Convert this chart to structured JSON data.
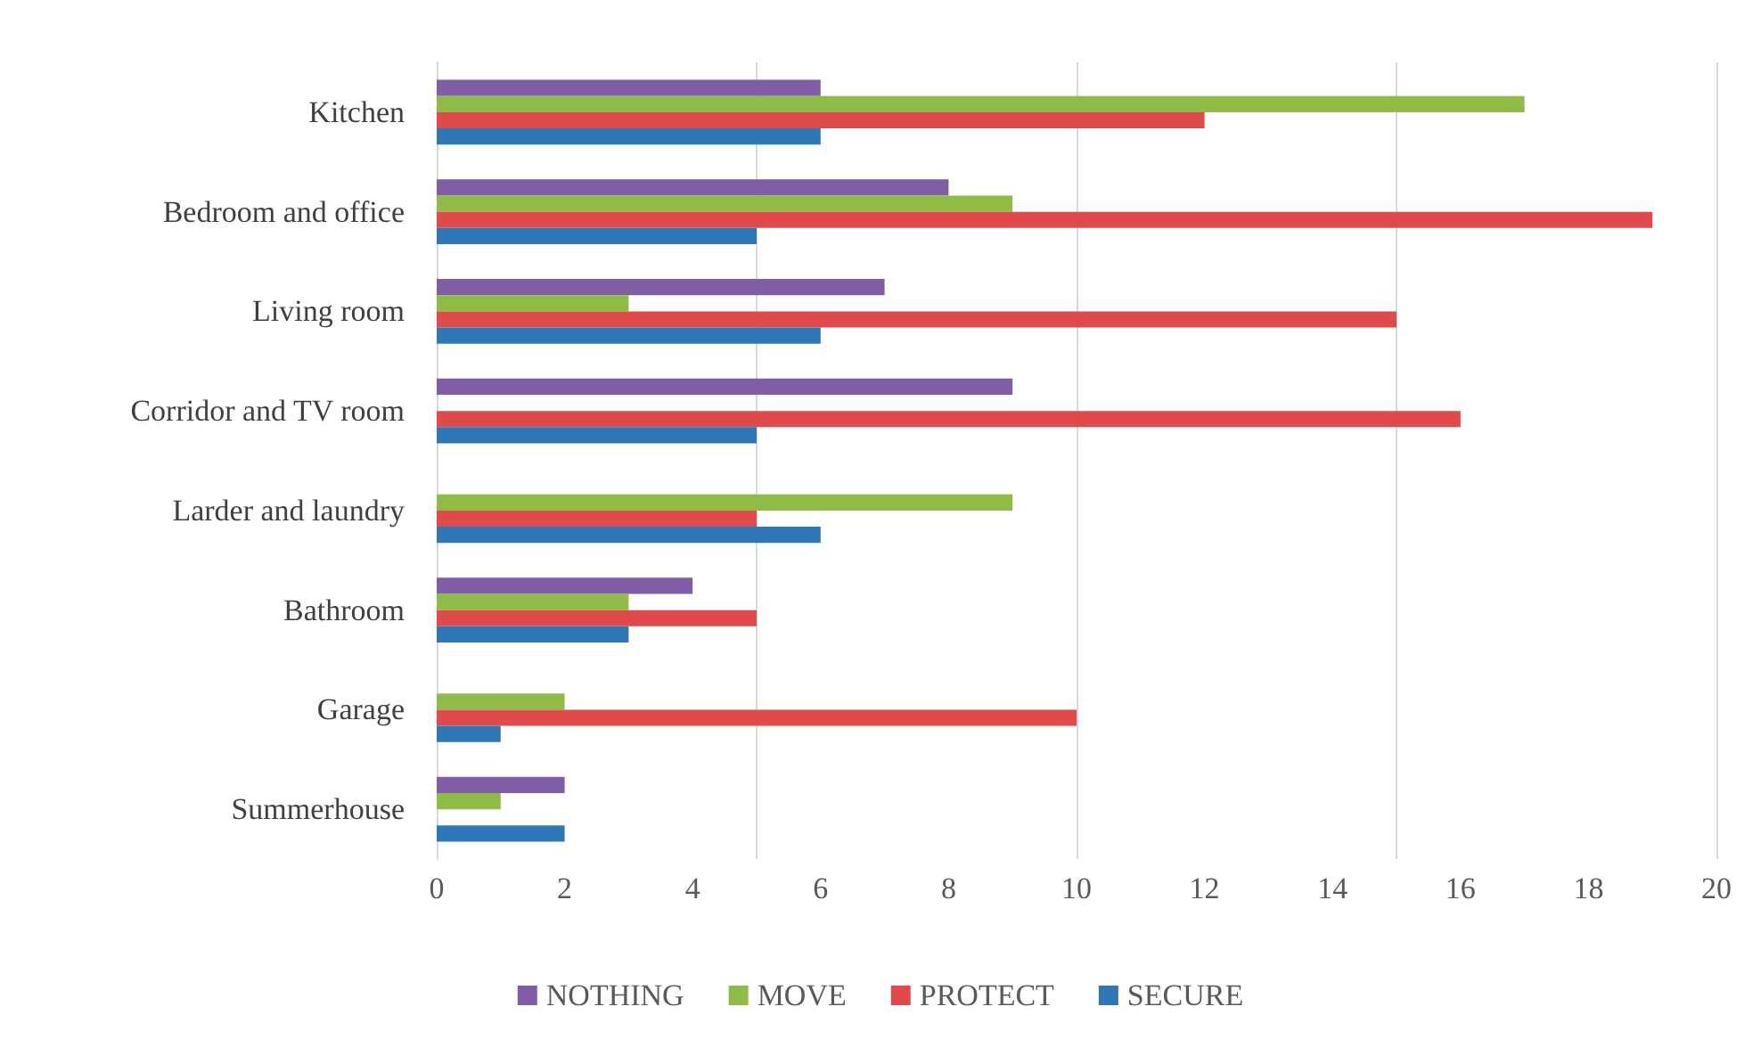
{
  "chart_data": {
    "type": "bar",
    "orientation": "horizontal",
    "categories": [
      "Kitchen",
      "Bedroom and office",
      "Living room",
      "Corridor and TV room",
      "Larder and laundry",
      "Bathroom",
      "Garage",
      "Summerhouse"
    ],
    "series": [
      {
        "name": "NOTHING",
        "color": "#7f5ea6",
        "values": [
          6,
          8,
          7,
          9,
          null,
          4,
          null,
          2
        ]
      },
      {
        "name": "MOVE",
        "color": "#8fbc46",
        "values": [
          17,
          9,
          3,
          null,
          9,
          3,
          2,
          1
        ]
      },
      {
        "name": "PROTECT",
        "color": "#e04a4b",
        "values": [
          12,
          19,
          15,
          16,
          5,
          5,
          10,
          null
        ]
      },
      {
        "name": "SECURE",
        "color": "#2e78b8",
        "values": [
          6,
          5,
          6,
          5,
          6,
          3,
          1,
          2
        ]
      }
    ],
    "xlim": [
      0,
      20
    ],
    "xticks": [
      0,
      2,
      4,
      6,
      8,
      10,
      12,
      14,
      16,
      18,
      20
    ],
    "grid": "x",
    "legend": "bottom"
  }
}
